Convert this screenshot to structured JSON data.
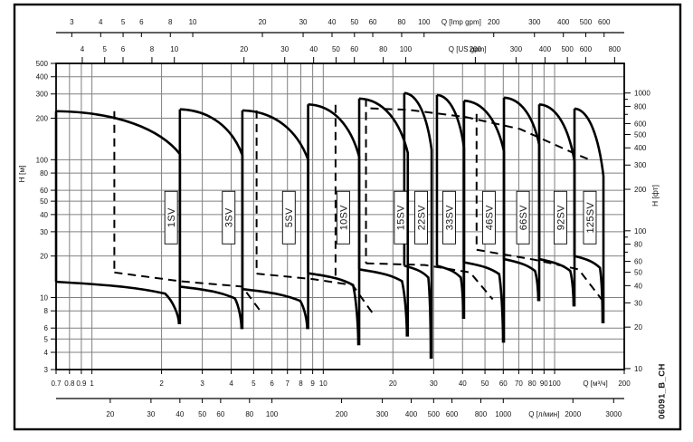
{
  "figure_id": "06091_B_CH",
  "colors": {
    "curve": "#000000",
    "grid": "#808080",
    "frame": "#000000",
    "background": "#ffffff",
    "text": "#151515"
  },
  "chart_data": {
    "type": "line",
    "title": "",
    "scales": {
      "q_min_m3h": 0.7,
      "q_max_m3h": 200,
      "h_min_m": 3,
      "h_max_m": 500,
      "x_log": true,
      "y_log": true
    },
    "axes": {
      "top_imp": {
        "label": "Q [Imp gpm]",
        "unit_to_m3h": 0.272765,
        "ticks": [
          3,
          4,
          5,
          6,
          8,
          10,
          20,
          30,
          40,
          50,
          60,
          80,
          100,
          200,
          300,
          400,
          500,
          600
        ],
        "label_anchor_m3h": 39.5
      },
      "top_us": {
        "label": "Q [US gpm]",
        "unit_to_m3h": 0.227125,
        "ticks": [
          4,
          5,
          6,
          8,
          10,
          20,
          30,
          40,
          50,
          60,
          80,
          100,
          200,
          300,
          400,
          500,
          600,
          800
        ],
        "label_anchor_m3h": 42
      },
      "bottom_m3h": {
        "label": "Q [м³/ч]",
        "unit_to_m3h": 1,
        "ticks": [
          0.7,
          0.8,
          0.9,
          1,
          2,
          3,
          4,
          5,
          6,
          7,
          8,
          9,
          10,
          20,
          30,
          40,
          50,
          60,
          70,
          80,
          90,
          100,
          200
        ],
        "label_anchor_m3h": 150
      },
      "bottom_lmin": {
        "label": "Q [л/мин]",
        "unit_to_m3h": 0.06,
        "ticks": [
          20,
          30,
          40,
          50,
          60,
          80,
          100,
          200,
          300,
          400,
          500,
          600,
          800,
          1000,
          2000,
          3000
        ],
        "label_anchor_m3h": 90
      },
      "left": {
        "label": "H [м]",
        "ticks": [
          3,
          4,
          5,
          6,
          8,
          10,
          20,
          30,
          40,
          50,
          60,
          80,
          100,
          200,
          300,
          400,
          500
        ]
      },
      "right": {
        "label": "H [фт]",
        "unit_to_m": 0.3048,
        "ticks": [
          10,
          20,
          30,
          40,
          50,
          60,
          80,
          100,
          200,
          300,
          400,
          500,
          600,
          800,
          1000
        ],
        "minor_ticks": [
          70,
          90,
          700,
          900
        ]
      }
    },
    "grid": {
      "x_m3h": [
        0.8,
        0.9,
        1,
        2,
        3,
        4,
        5,
        6,
        7,
        8,
        9,
        10,
        20,
        30,
        40,
        50,
        60,
        70,
        80,
        90,
        100
      ],
      "y_m": [
        4,
        5,
        6,
        8,
        10,
        20,
        30,
        40,
        50,
        60,
        80,
        100,
        200,
        300,
        400
      ]
    },
    "series": [
      {
        "name": "1SV",
        "q_min": 0.7,
        "q_max": 2.4,
        "h_max": 225,
        "h_knee": 110,
        "h_min_left": 13,
        "h_min_right": 6.4,
        "label_q": 2.2
      },
      {
        "name": "3SV",
        "q_min": 2.4,
        "q_max": 4.47,
        "h_max": 232,
        "h_knee": 108,
        "h_min_left": 12,
        "h_min_right": 5.9,
        "label_q": 3.9
      },
      {
        "name": "5SV",
        "q_min": 4.47,
        "q_max": 8.6,
        "h_max": 228,
        "h_knee": 100,
        "h_min_left": 11.5,
        "h_min_right": 5.9,
        "label_q": 7.1
      },
      {
        "name": "10SV",
        "q_min": 8.6,
        "q_max": 14.3,
        "h_max": 252,
        "h_knee": 105,
        "h_min_left": 15,
        "h_min_right": 4.5,
        "label_q": 12.2
      },
      {
        "name": "15SV",
        "q_min": 14.3,
        "q_max": 23.2,
        "h_max": 278,
        "h_knee": 112,
        "h_min_left": 16,
        "h_min_right": 5.2,
        "label_q": 21.6
      },
      {
        "name": "22SV",
        "q_min": 22.4,
        "q_max": 29.4,
        "h_max": 305,
        "h_knee": 118,
        "h_min_left": 17,
        "h_min_right": 3.6,
        "label_q": 26.5
      },
      {
        "name": "33SV",
        "q_min": 31,
        "q_max": 40.6,
        "h_max": 295,
        "h_knee": 122,
        "h_min_left": 17,
        "h_min_right": 7.0,
        "label_q": 35
      },
      {
        "name": "46SV",
        "q_min": 40.6,
        "q_max": 60.4,
        "h_max": 268,
        "h_knee": 115,
        "h_min_left": 18,
        "h_min_right": 4.7,
        "label_q": 52
      },
      {
        "name": "66SV",
        "q_min": 60.4,
        "q_max": 85.8,
        "h_max": 282,
        "h_knee": 128,
        "h_min_left": 19,
        "h_min_right": 9.4,
        "label_q": 73
      },
      {
        "name": "92SV",
        "q_min": 85.8,
        "q_max": 121.9,
        "h_max": 252,
        "h_knee": 97,
        "h_min_left": 19,
        "h_min_right": 8.6,
        "label_q": 106
      },
      {
        "name": "125SV",
        "q_min": 121.9,
        "q_max": 162.6,
        "h_max": 235,
        "h_knee": 76,
        "h_min_left": 20,
        "h_min_right": 6.5,
        "label_q": 142
      }
    ],
    "label_h_center": 38,
    "dashed_overlays": {
      "verticals": [
        {
          "q": 1.25,
          "h_top": 225,
          "h_bottom": 15.2
        },
        {
          "q": 5.15,
          "h_top": 228,
          "h_bottom": 14.9
        },
        {
          "q": 11.3,
          "h_top": 250,
          "h_bottom": 14.4
        },
        {
          "q": 15.3,
          "h_top": 278,
          "h_bottom": 17.7
        },
        {
          "q": 46,
          "h_top": 215,
          "h_bottom": 22.2
        }
      ],
      "bottom_lines": [
        [
          [
            1.25,
            15.2
          ],
          [
            2.43,
            13.1
          ],
          [
            4.46,
            12.0
          ],
          [
            5.4,
            7.8
          ]
        ],
        [
          [
            5.15,
            14.9
          ],
          [
            9,
            13.6
          ],
          [
            13.4,
            12.3
          ],
          [
            16.7,
            7.3
          ]
        ],
        [
          [
            15.3,
            17.7
          ],
          [
            27.5,
            17.2
          ],
          [
            43.1,
            15.2
          ],
          [
            54,
            9.7
          ]
        ],
        [
          [
            46,
            22.2
          ],
          [
            81.8,
            18.8
          ],
          [
            127,
            16.0
          ],
          [
            159.6,
            9.7
          ]
        ]
      ],
      "top_line": [
        [
          16,
          236
        ],
        [
          23.4,
          230
        ],
        [
          41.3,
          204
        ],
        [
          70.9,
          167
        ],
        [
          121.8,
          111
        ],
        [
          145.8,
          98
        ]
      ]
    }
  }
}
